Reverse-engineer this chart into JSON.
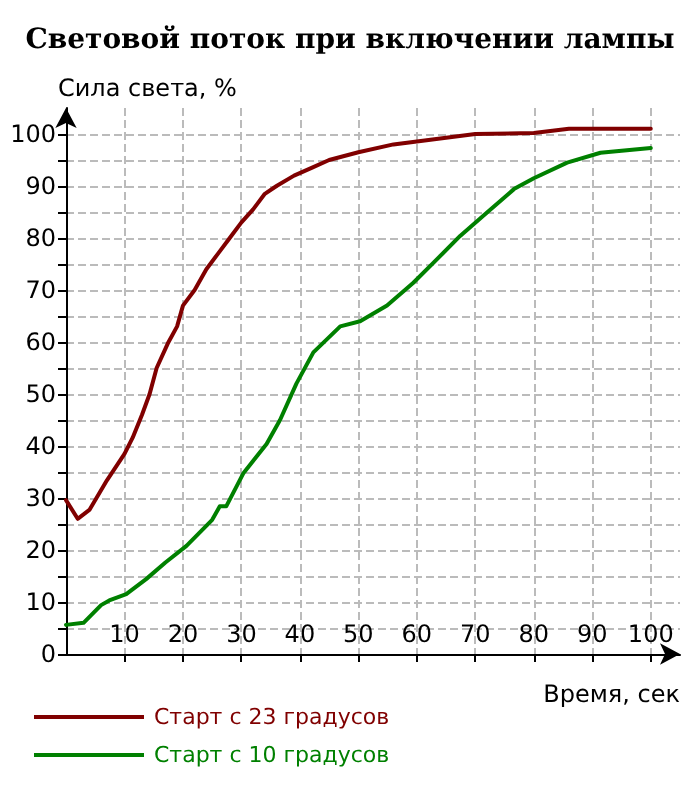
{
  "chart_data": {
    "type": "line",
    "title": "Световой поток при включении лампы",
    "xlabel": "Время, сек",
    "ylabel": "Сила света, %",
    "xlim": [
      0,
      105
    ],
    "ylim": [
      0,
      105
    ],
    "xticks": [
      10,
      20,
      30,
      40,
      50,
      60,
      70,
      80,
      90,
      100
    ],
    "yticks": [
      0,
      {
        "value": 5,
        "label": null
      },
      10,
      {
        "value": 15,
        "label": null
      },
      20,
      {
        "value": 25,
        "label": null
      },
      30,
      {
        "value": 35,
        "label": null
      },
      40,
      {
        "value": 45,
        "label": null
      },
      50,
      {
        "value": 55,
        "label": null
      },
      60,
      {
        "value": 65,
        "label": null
      },
      70,
      {
        "value": 75,
        "label": null
      },
      80,
      {
        "value": 85,
        "label": null
      },
      90,
      {
        "value": 95,
        "label": null
      },
      100
    ],
    "grid": true,
    "legend": "bottom left",
    "marker": "none",
    "line_style": "solid",
    "series": [
      {
        "name": "Старт с 23 градусов",
        "color": "#800000",
        "x": [
          0,
          2,
          4,
          7,
          10,
          11.4,
          13,
          14.3,
          15.5,
          17.4,
          19,
          20,
          22,
          24,
          26,
          28,
          30,
          32,
          34,
          36,
          39,
          42,
          45,
          50,
          56,
          63,
          70,
          80,
          86,
          100
        ],
        "values": [
          29.6,
          26,
          27.7,
          33.4,
          38.5,
          41.6,
          46,
          50,
          55,
          59.7,
          63,
          67,
          70,
          74,
          77,
          80,
          83,
          85.5,
          88.5,
          90,
          92,
          93.5,
          95,
          96.5,
          98,
          99,
          100,
          100.2,
          101,
          101
        ]
      },
      {
        "name": "Старт с 10 градусов",
        "color": "#008000",
        "x": [
          0,
          3,
          6,
          7.4,
          10.3,
          13.7,
          17,
          20.6,
          25,
          26.3,
          27.4,
          30.3,
          34.3,
          36.6,
          39.4,
          42.3,
          46.9,
          50.3,
          54.9,
          59.4,
          62.9,
          67.4,
          72,
          76.6,
          80,
          85.7,
          91.4,
          100
        ],
        "values": [
          5.6,
          6,
          9.4,
          10.3,
          11.5,
          14.4,
          17.6,
          20.8,
          25.8,
          28.4,
          28.4,
          34.7,
          40.4,
          45,
          52,
          58,
          63,
          64,
          67,
          71.4,
          75.3,
          80.4,
          84.9,
          89.4,
          91.5,
          94.5,
          96.4,
          97.3
        ]
      }
    ]
  }
}
